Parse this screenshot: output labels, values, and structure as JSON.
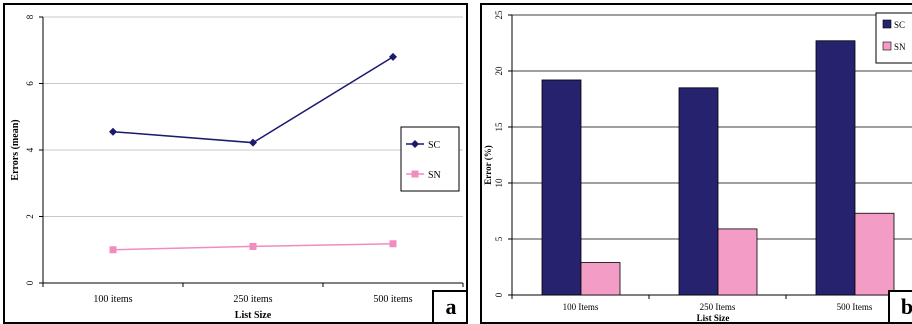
{
  "chart_data": [
    {
      "type": "line",
      "panel_label": "a",
      "xlabel": "List Size",
      "ylabel": "Errors (mean)",
      "categories": [
        "100 items",
        "250 items",
        "500 items"
      ],
      "ylim": [
        0,
        8
      ],
      "yticks": [
        "0",
        "2",
        "4",
        "6",
        "8"
      ],
      "series": [
        {
          "name": "SC",
          "values": [
            4.55,
            4.22,
            6.8
          ],
          "color": "#1a1a6e",
          "marker": "diamond"
        },
        {
          "name": "SN",
          "values": [
            1.0,
            1.1,
            1.18
          ],
          "color": "#f08cbf",
          "marker": "square"
        }
      ],
      "grid": true,
      "legend": "right"
    },
    {
      "type": "bar",
      "panel_label": "b",
      "xlabel": "List Size",
      "ylabel": "Error (%)",
      "categories": [
        "100 Items",
        "250 Items",
        "500 Items"
      ],
      "ylim": [
        0,
        25
      ],
      "yticks": [
        "0",
        "5",
        "10",
        "15",
        "20",
        "25"
      ],
      "series": [
        {
          "name": "SC",
          "values": [
            19.2,
            18.5,
            22.7
          ],
          "color": "#26226e"
        },
        {
          "name": "SN",
          "values": [
            2.9,
            5.9,
            7.3
          ],
          "color": "#f29cc6"
        }
      ],
      "grid": true,
      "legend": "top-right"
    }
  ]
}
